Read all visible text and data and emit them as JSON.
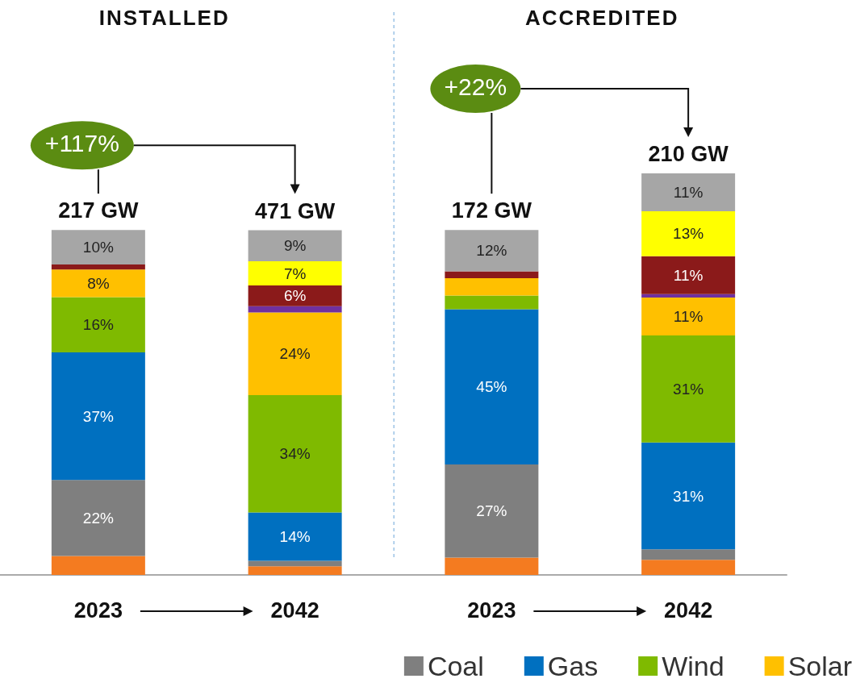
{
  "chart_data": {
    "type": "bar",
    "stacked": true,
    "tick_labels": "x",
    "categories": [
      "2023",
      "2042",
      "2023",
      "2042"
    ],
    "series": [
      {
        "color": "#f47b20",
        "values": [
          5.5,
          2.5,
          5,
          4.4
        ]
      },
      {
        "name": "Coal",
        "color": "#7f7f7f",
        "values": [
          22,
          1.6,
          27,
          3
        ],
        "value_labels": [
          "22%",
          null,
          "27%",
          null
        ]
      },
      {
        "name": "Gas",
        "color": "#0070c0",
        "values": [
          37,
          14,
          45,
          31
        ],
        "value_labels": [
          "37%",
          "14%",
          "45%",
          "31%"
        ]
      },
      {
        "name": "Wind",
        "color": "#7fba00",
        "values": [
          16,
          34,
          4,
          31
        ],
        "value_labels": [
          "16%",
          "34%",
          null,
          "31%"
        ]
      },
      {
        "name": "Solar",
        "color": "#ffc000",
        "values": [
          8,
          24,
          5,
          11
        ],
        "value_labels": [
          "8%",
          "24%",
          null,
          "11%"
        ]
      },
      {
        "color": "#7030a0",
        "values": [
          0,
          1.8,
          0,
          1
        ]
      },
      {
        "color": "#8b1a1a",
        "values": [
          1.5,
          6,
          2,
          11
        ],
        "value_labels": [
          null,
          "6%",
          null,
          "11%"
        ]
      },
      {
        "color": "#ffff00",
        "values": [
          0,
          7,
          0,
          13
        ],
        "value_labels": [
          null,
          "7%",
          null,
          "13%"
        ]
      },
      {
        "color": "#a6a6a6",
        "values": [
          10,
          9,
          12,
          11
        ],
        "value_labels": [
          "10%",
          "9%",
          "12%",
          "11%"
        ]
      }
    ],
    "annotations": [
      "INSTALLED",
      "ACCREDITED",
      "+117%",
      "+22%",
      "217 GW",
      "471 GW",
      "172 GW",
      "210 GW"
    ],
    "legend": "bottom right"
  }
}
